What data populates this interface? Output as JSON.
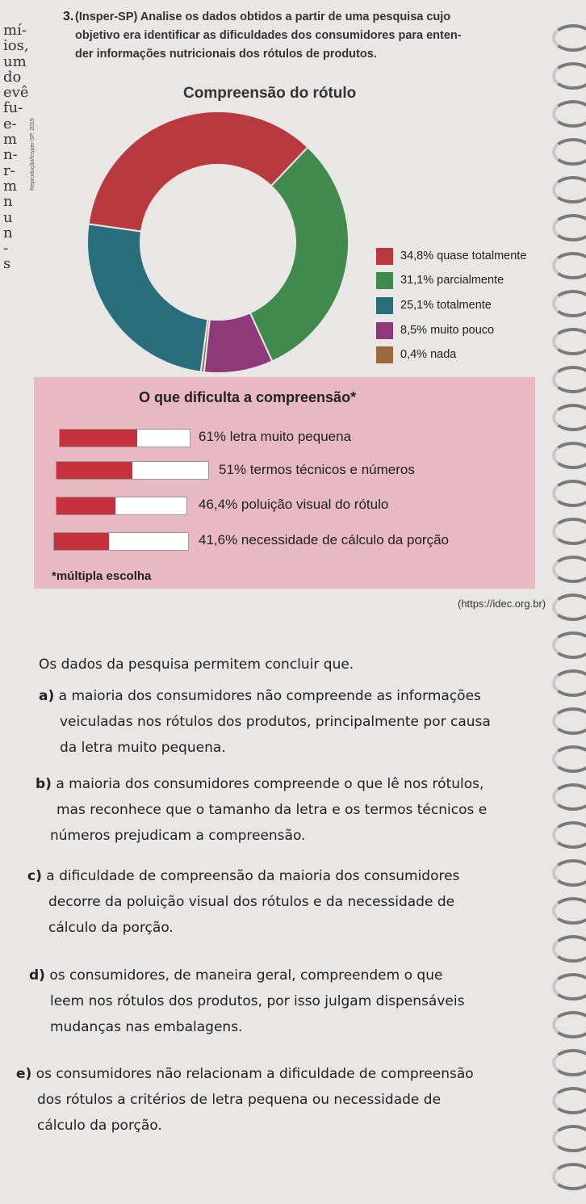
{
  "margin_fragments": [
    "mí-",
    "ios,",
    "um",
    "do",
    "evê",
    "fu-",
    "e-",
    "m",
    "n-",
    "r-",
    "m",
    "n",
    "u",
    "n",
    "-",
    "s"
  ],
  "question": {
    "number": "3.",
    "lines": [
      "(Insper-SP) Analise os dados obtidos a partir de uma pesquisa cujo",
      "objetivo era identificar as dificuldades dos consumidores para enten-",
      "der informações nutricionais dos rótulos de produtos."
    ]
  },
  "credit": "Reprodução/Insper-SP, 2019",
  "chart_data": [
    {
      "type": "pie",
      "title": "Compreensão do rótulo",
      "categories": [
        "quase totalmente",
        "parcialmente",
        "totalmente",
        "muito pouco",
        "nada"
      ],
      "values": [
        34.8,
        31.1,
        25.1,
        8.5,
        0.4
      ],
      "labels": [
        "34,8% quase totalmente",
        "31,1% parcialmente",
        "25,1% totalmente",
        "8,5% muito pouco",
        "0,4% nada"
      ],
      "colors": [
        "#b83a3f",
        "#3f8a4c",
        "#2a6e7c",
        "#8e3a78",
        "#9a6a3c"
      ]
    },
    {
      "type": "bar",
      "title": "O que dificulta a compreensão*",
      "categories": [
        "letra muito pequena",
        "termos técnicos e números",
        "poluição visual do rótulo",
        "necessidade de cálculo da porção"
      ],
      "values": [
        61,
        51,
        46.4,
        41.6
      ],
      "labels": [
        "61% letra muito pequena",
        "51% termos técnicos e números",
        "46,4% poluição visual do rótulo",
        "41,6% necessidade de cálculo da porção"
      ],
      "footnote": "*múltipla escolha",
      "xlim": [
        0,
        100
      ],
      "color": "#c5313d"
    }
  ],
  "source": "(https://idec.org.br)",
  "intro": "Os dados da pesquisa permitem concluir que.",
  "options": [
    {
      "label": "a)",
      "lines": [
        "a maioria dos consumidores não compreende as informações",
        "veiculadas nos rótulos dos produtos, principalmente por causa",
        "da letra muito pequena."
      ]
    },
    {
      "label": "b)",
      "lines": [
        "a maioria dos consumidores compreende o que lê nos rótulos,",
        "mas reconhece que o tamanho da letra e os termos técnicos e",
        "números prejudicam a compreensão."
      ]
    },
    {
      "label": "c)",
      "lines": [
        "a dificuldade de compreensão da maioria dos consumidores",
        "decorre da poluição visual dos rótulos e da necessidade de",
        "cálculo da porção."
      ]
    },
    {
      "label": "d)",
      "lines": [
        "os consumidores, de maneira geral, compreendem o que",
        "leem nos rótulos dos produtos, por isso julgam dispensáveis",
        "mudanças nas embalagens."
      ]
    },
    {
      "label": "e)",
      "lines": [
        "os consumidores não relacionam a dificuldade de compreensão",
        "dos rótulos a critérios de letra pequena ou necessidade de",
        "cálculo da porção."
      ]
    }
  ]
}
